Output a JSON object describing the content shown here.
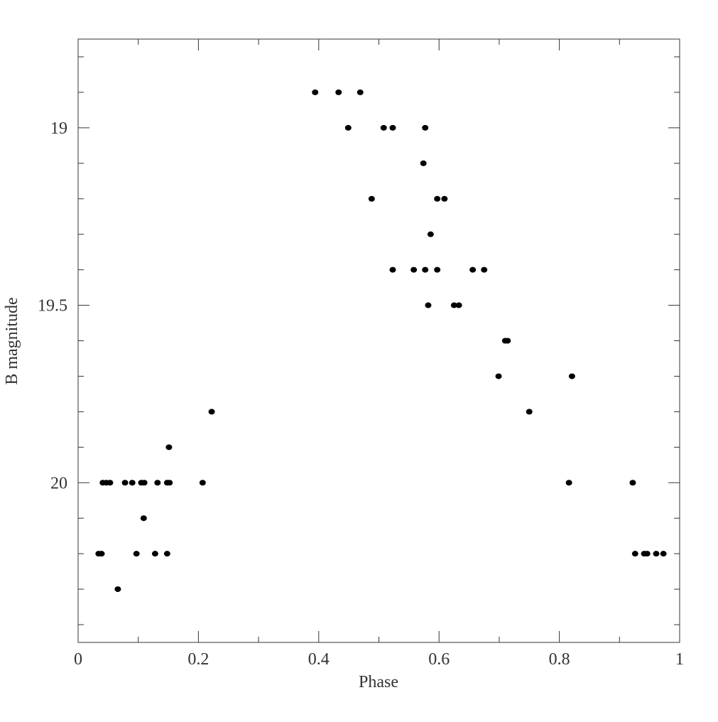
{
  "chart_data": {
    "type": "scatter",
    "xlabel": "Phase",
    "ylabel": "B magnitude",
    "xlim": [
      0,
      1
    ],
    "ylim": [
      20.45,
      18.75
    ],
    "invert_y": true,
    "xticks": [
      0,
      0.2,
      0.4,
      0.6,
      0.8,
      1
    ],
    "xminorticks": [
      0.1,
      0.3,
      0.5,
      0.7,
      0.9
    ],
    "yticks": [
      19,
      19.5,
      20
    ],
    "yminorticks": [
      18.8,
      18.9,
      19.1,
      19.2,
      19.3,
      19.4,
      19.6,
      19.7,
      19.8,
      19.9,
      20.1,
      20.2,
      20.3,
      20.4
    ],
    "color": "#000000",
    "x": [
      0.394,
      0.433,
      0.469,
      0.449,
      0.508,
      0.523,
      0.577,
      0.574,
      0.488,
      0.597,
      0.609,
      0.586,
      0.523,
      0.558,
      0.577,
      0.597,
      0.656,
      0.675,
      0.582,
      0.625,
      0.633,
      0.71,
      0.714,
      0.699,
      0.821,
      0.222,
      0.75,
      0.151,
      0.041,
      0.047,
      0.053,
      0.078,
      0.09,
      0.105,
      0.11,
      0.132,
      0.148,
      0.152,
      0.207,
      0.816,
      0.922,
      0.109,
      0.034,
      0.039,
      0.097,
      0.128,
      0.148,
      0.926,
      0.941,
      0.946,
      0.961,
      0.973,
      0.066
    ],
    "y": [
      18.9,
      18.9,
      18.9,
      19.0,
      19.0,
      19.0,
      19.0,
      19.1,
      19.2,
      19.2,
      19.2,
      19.3,
      19.4,
      19.4,
      19.4,
      19.4,
      19.4,
      19.4,
      19.5,
      19.5,
      19.5,
      19.6,
      19.6,
      19.7,
      19.7,
      19.8,
      19.8,
      19.9,
      20.0,
      20.0,
      20.0,
      20.0,
      20.0,
      20.0,
      20.0,
      20.0,
      20.0,
      20.0,
      20.0,
      20.0,
      20.0,
      20.1,
      20.2,
      20.2,
      20.2,
      20.2,
      20.2,
      20.2,
      20.2,
      20.2,
      20.2,
      20.2,
      20.3
    ]
  }
}
